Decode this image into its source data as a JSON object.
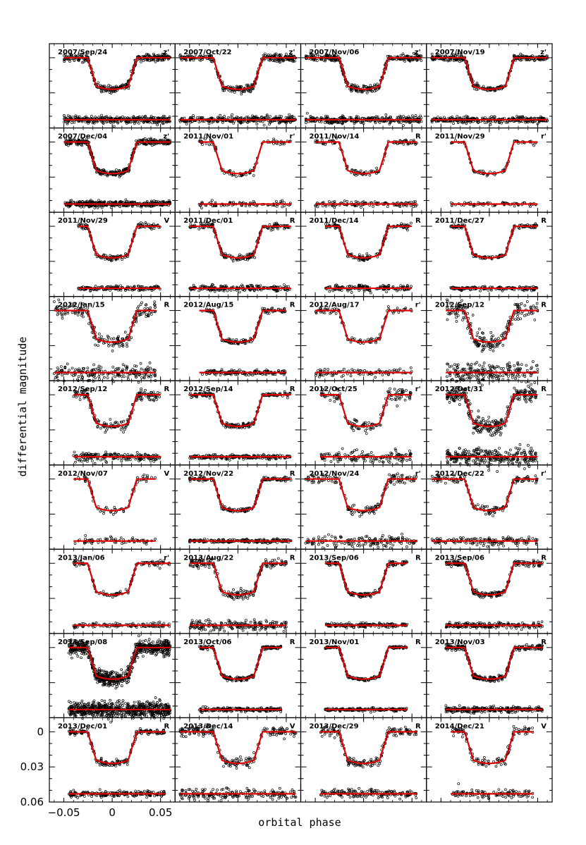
{
  "chart_data": {
    "type": "scatter",
    "layout": "grid-9-rows-4-columns",
    "xlabel": "orbital phase",
    "ylabel": "differential magnitude",
    "xlim": [
      -0.065,
      0.065
    ],
    "ylim": [
      0.06,
      -0.012
    ],
    "x_ticks": [
      "−0.05",
      "0",
      "0.05"
    ],
    "x_tick_values": [
      -0.05,
      0,
      0.05
    ],
    "y_ticks": [
      "0",
      "0.03",
      "0.06"
    ],
    "y_tick_values": [
      0,
      0.03,
      0.06
    ],
    "y_inverted": true,
    "colors": {
      "points": "#000000",
      "model": "#e00000",
      "axes": "#000000"
    },
    "series_description": [
      {
        "role": "light-curve-points",
        "marker": "open-circle"
      },
      {
        "role": "transit-model",
        "style": "red-line"
      },
      {
        "role": "residuals",
        "offset_mag": 0.053
      }
    ],
    "transit_model": {
      "depth_mag": 0.027,
      "half_width_phase": 0.0255,
      "ingress_phase": 0.009
    },
    "panels": [
      {
        "date": "2007/Sep/24",
        "band": "z'",
        "phase_range": [
          -0.05,
          0.06
        ],
        "scatter": 0.0015,
        "n": 320
      },
      {
        "date": "2007/Oct/22",
        "band": "z'",
        "phase_range": [
          -0.06,
          0.06
        ],
        "scatter": 0.0015,
        "n": 300
      },
      {
        "date": "2007/Nov/06",
        "band": "z'",
        "phase_range": [
          -0.06,
          0.06
        ],
        "scatter": 0.0015,
        "n": 320
      },
      {
        "date": "2007/Nov/19",
        "band": "z'",
        "phase_range": [
          -0.06,
          0.06
        ],
        "scatter": 0.0012,
        "n": 320
      },
      {
        "date": "2007/Dec/04",
        "band": "z'",
        "phase_range": [
          -0.05,
          0.06
        ],
        "scatter": 0.0012,
        "n": 380
      },
      {
        "date": "2011/Nov/01",
        "band": "r'",
        "phase_range": [
          -0.04,
          0.055
        ],
        "scatter": 0.0012,
        "n": 90
      },
      {
        "date": "2011/Nov/14",
        "band": "R",
        "phase_range": [
          -0.05,
          0.055
        ],
        "scatter": 0.0012,
        "n": 120
      },
      {
        "date": "2011/Nov/29",
        "band": "r'",
        "phase_range": [
          -0.04,
          0.05
        ],
        "scatter": 0.0009,
        "n": 70
      },
      {
        "date": "2011/Nov/29",
        "band": "V",
        "phase_range": [
          -0.035,
          0.05
        ],
        "scatter": 0.001,
        "n": 150
      },
      {
        "date": "2011/Dec/01",
        "band": "R",
        "phase_range": [
          -0.05,
          0.055
        ],
        "scatter": 0.0012,
        "n": 200
      },
      {
        "date": "2011/Dec/14",
        "band": "R",
        "phase_range": [
          -0.04,
          0.05
        ],
        "scatter": 0.0012,
        "n": 150
      },
      {
        "date": "2011/Dec/27",
        "band": "R",
        "phase_range": [
          -0.04,
          0.05
        ],
        "scatter": 0.0008,
        "n": 150
      },
      {
        "date": "2012/Jan/15",
        "band": "R",
        "phase_range": [
          -0.06,
          0.045
        ],
        "scatter": 0.003,
        "n": 200
      },
      {
        "date": "2012/Aug/15",
        "band": "R",
        "phase_range": [
          -0.04,
          0.05
        ],
        "scatter": 0.001,
        "n": 150
      },
      {
        "date": "2012/Aug/17",
        "band": "r'",
        "phase_range": [
          -0.05,
          0.05
        ],
        "scatter": 0.0015,
        "n": 100
      },
      {
        "date": "2012/Sep/12",
        "band": "R",
        "phase_range": [
          -0.045,
          0.05
        ],
        "scatter": 0.004,
        "n": 220
      },
      {
        "date": "2012/Sep/12",
        "band": "R",
        "phase_range": [
          -0.04,
          0.05
        ],
        "scatter": 0.002,
        "n": 180
      },
      {
        "date": "2012/Sep/14",
        "band": "R",
        "phase_range": [
          -0.05,
          0.055
        ],
        "scatter": 0.001,
        "n": 200
      },
      {
        "date": "2012/Oct/25",
        "band": "r'",
        "phase_range": [
          -0.045,
          0.05
        ],
        "scatter": 0.0025,
        "n": 140
      },
      {
        "date": "2012/Oct/31",
        "band": "R",
        "phase_range": [
          -0.045,
          0.05
        ],
        "scatter": 0.0035,
        "n": 300
      },
      {
        "date": "2012/Nov/07",
        "band": "V",
        "phase_range": [
          -0.04,
          0.045
        ],
        "scatter": 0.0015,
        "n": 70
      },
      {
        "date": "2012/Nov/22",
        "band": "R",
        "phase_range": [
          -0.05,
          0.055
        ],
        "scatter": 0.0008,
        "n": 200
      },
      {
        "date": "2012/Nov/24",
        "band": "r'",
        "phase_range": [
          -0.06,
          0.055
        ],
        "scatter": 0.0022,
        "n": 160
      },
      {
        "date": "2012/Dec/22",
        "band": "r'",
        "phase_range": [
          -0.06,
          0.05
        ],
        "scatter": 0.0015,
        "n": 150
      },
      {
        "date": "2013/Jan/06",
        "band": "r'",
        "phase_range": [
          -0.04,
          0.06
        ],
        "scatter": 0.001,
        "n": 120
      },
      {
        "date": "2013/Aug/22",
        "band": "R",
        "phase_range": [
          -0.05,
          0.05
        ],
        "scatter": 0.002,
        "n": 200
      },
      {
        "date": "2013/Sep/06",
        "band": "R",
        "phase_range": [
          -0.04,
          0.045
        ],
        "scatter": 0.001,
        "n": 160
      },
      {
        "date": "2013/Sep/06",
        "band": "R",
        "phase_range": [
          -0.045,
          0.055
        ],
        "scatter": 0.0012,
        "n": 220
      },
      {
        "date": "2013/Sep/08",
        "band": "R",
        "phase_range": [
          -0.045,
          0.06
        ],
        "scatter": 0.003,
        "n": 700
      },
      {
        "date": "2013/Oct/06",
        "band": "R",
        "phase_range": [
          -0.04,
          0.045
        ],
        "scatter": 0.0008,
        "n": 200
      },
      {
        "date": "2013/Nov/01",
        "band": "R",
        "phase_range": [
          -0.04,
          0.045
        ],
        "scatter": 0.0006,
        "n": 180
      },
      {
        "date": "2013/Nov/03",
        "band": "R",
        "phase_range": [
          -0.045,
          0.055
        ],
        "scatter": 0.0012,
        "n": 260
      },
      {
        "date": "2013/Dec/01",
        "band": "R",
        "phase_range": [
          -0.045,
          0.055
        ],
        "scatter": 0.0012,
        "n": 200
      },
      {
        "date": "2013/Dec/14",
        "band": "V",
        "phase_range": [
          -0.06,
          0.06
        ],
        "scatter": 0.0022,
        "n": 200
      },
      {
        "date": "2013/Dec/29",
        "band": "R",
        "phase_range": [
          -0.045,
          0.055
        ],
        "scatter": 0.0018,
        "n": 170
      },
      {
        "date": "2014/Dec/21",
        "band": "V",
        "phase_range": [
          -0.04,
          0.045
        ],
        "scatter": 0.0018,
        "n": 110
      }
    ]
  }
}
